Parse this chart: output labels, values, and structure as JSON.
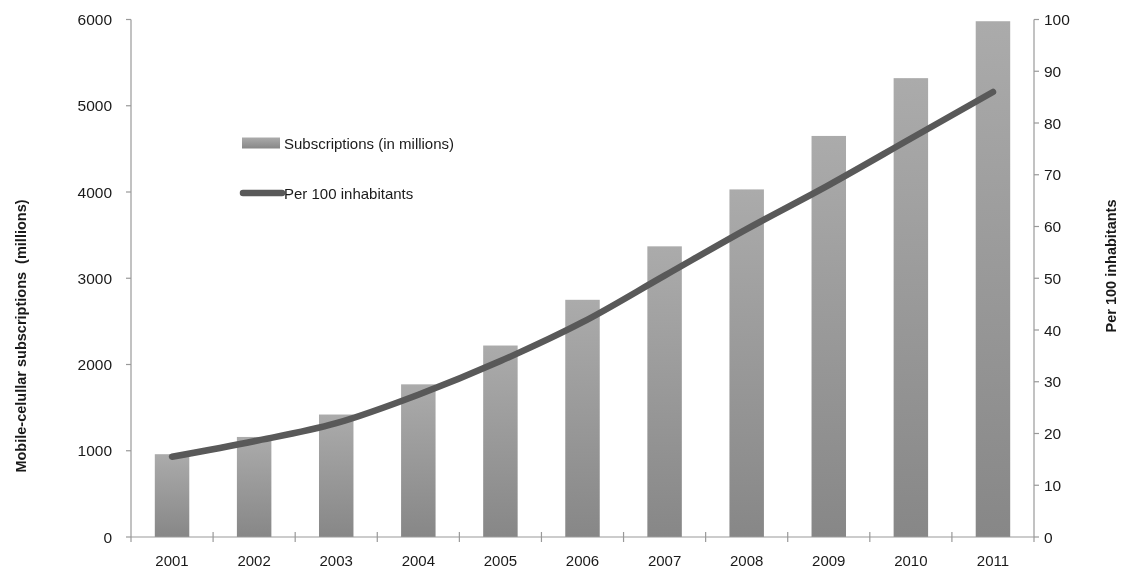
{
  "chart_data": {
    "type": "bar",
    "categories": [
      "2001",
      "2002",
      "2003",
      "2004",
      "2005",
      "2006",
      "2007",
      "2008",
      "2009",
      "2010",
      "2011"
    ],
    "series": [
      {
        "name": "Subscriptions (in millions)",
        "type": "bar",
        "color": "#9c9c9c",
        "values": [
          960,
          1160,
          1420,
          1770,
          2220,
          2750,
          3370,
          4030,
          4650,
          5320,
          5980
        ]
      },
      {
        "name": "Per 100 inhabitants",
        "type": "line",
        "axis": "y2",
        "color": "#595959",
        "values": [
          15.5,
          18.5,
          22,
          27.5,
          34,
          41.5,
          50.5,
          59.5,
          68,
          77,
          86
        ]
      }
    ],
    "ylabel": "Mobile-celullar subscriptions  (millions)",
    "y2label": "Per 100 inhabitants",
    "ylim": [
      0,
      6000
    ],
    "yticks": [
      0,
      1000,
      2000,
      3000,
      4000,
      5000,
      6000
    ],
    "y2lim": [
      0,
      100
    ],
    "y2ticks": [
      0,
      10,
      20,
      30,
      40,
      50,
      60,
      70,
      80,
      90,
      100
    ],
    "legend": "top left"
  }
}
